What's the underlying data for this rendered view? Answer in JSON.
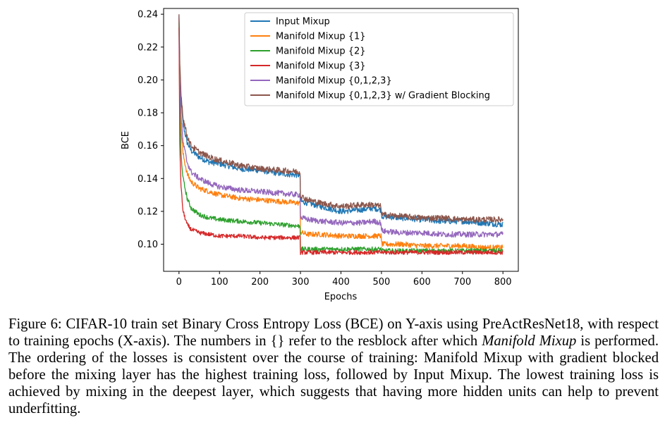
{
  "chart_data": {
    "type": "line",
    "title": "",
    "xlabel": "Epochs",
    "ylabel": "BCE",
    "xlim": [
      -38,
      838
    ],
    "ylim": [
      0.0835,
      0.2435
    ],
    "xticks": [
      0,
      100,
      200,
      300,
      400,
      500,
      600,
      700,
      800
    ],
    "xtick_labels": [
      "0",
      "100",
      "200",
      "300",
      "400",
      "500",
      "600",
      "700",
      "800"
    ],
    "yticks": [
      0.1,
      0.12,
      0.14,
      0.16,
      0.18,
      0.2,
      0.22,
      0.24
    ],
    "ytick_labels": [
      "0.10",
      "0.12",
      "0.14",
      "0.16",
      "0.18",
      "0.20",
      "0.22",
      "0.24"
    ],
    "grid": false,
    "legend_position": "top-right",
    "x": [
      0,
      2,
      5,
      10,
      20,
      30,
      50,
      75,
      100,
      150,
      200,
      250,
      299,
      300,
      302,
      320,
      350,
      400,
      450,
      480,
      499,
      500,
      502,
      550,
      600,
      650,
      700,
      750,
      800
    ],
    "series": [
      {
        "name": "Input Mixup",
        "color": "#1f77b4",
        "noise": 0.0018,
        "values": [
          0.239,
          0.205,
          0.188,
          0.173,
          0.162,
          0.157,
          0.153,
          0.15,
          0.149,
          0.146,
          0.145,
          0.143,
          0.142,
          0.127,
          0.126,
          0.125,
          0.123,
          0.12,
          0.121,
          0.122,
          0.121,
          0.118,
          0.117,
          0.116,
          0.115,
          0.114,
          0.114,
          0.113,
          0.112
        ]
      },
      {
        "name": "Manifold Mixup {1}",
        "color": "#ff7f0e",
        "noise": 0.0016,
        "values": [
          0.237,
          0.19,
          0.17,
          0.155,
          0.143,
          0.138,
          0.134,
          0.132,
          0.13,
          0.128,
          0.127,
          0.126,
          0.125,
          0.108,
          0.107,
          0.106,
          0.106,
          0.105,
          0.105,
          0.105,
          0.105,
          0.101,
          0.1,
          0.1,
          0.099,
          0.099,
          0.099,
          0.098,
          0.098
        ]
      },
      {
        "name": "Manifold Mixup {2}",
        "color": "#2ca02c",
        "noise": 0.0014,
        "values": [
          0.235,
          0.178,
          0.155,
          0.14,
          0.128,
          0.122,
          0.118,
          0.116,
          0.115,
          0.114,
          0.113,
          0.112,
          0.111,
          0.098,
          0.097,
          0.097,
          0.097,
          0.097,
          0.097,
          0.097,
          0.097,
          0.096,
          0.096,
          0.096,
          0.096,
          0.096,
          0.096,
          0.096,
          0.096
        ]
      },
      {
        "name": "Manifold Mixup {3}",
        "color": "#d62728",
        "noise": 0.0013,
        "values": [
          0.232,
          0.16,
          0.135,
          0.12,
          0.112,
          0.109,
          0.107,
          0.106,
          0.105,
          0.105,
          0.104,
          0.104,
          0.104,
          0.095,
          0.095,
          0.095,
          0.095,
          0.095,
          0.095,
          0.095,
          0.095,
          0.095,
          0.095,
          0.095,
          0.095,
          0.095,
          0.095,
          0.095,
          0.095
        ]
      },
      {
        "name": "Manifold Mixup {0,1,2,3}",
        "color": "#9467bd",
        "noise": 0.0017,
        "values": [
          0.238,
          0.198,
          0.178,
          0.162,
          0.15,
          0.144,
          0.14,
          0.137,
          0.135,
          0.133,
          0.132,
          0.131,
          0.13,
          0.117,
          0.116,
          0.115,
          0.114,
          0.113,
          0.113,
          0.114,
          0.113,
          0.109,
          0.108,
          0.107,
          0.107,
          0.106,
          0.106,
          0.106,
          0.106
        ]
      },
      {
        "name": "Manifold Mixup {0,1,2,3} w/ Gradient Blocking",
        "color": "#8c564b",
        "noise": 0.0018,
        "values": [
          0.24,
          0.21,
          0.192,
          0.177,
          0.166,
          0.16,
          0.156,
          0.153,
          0.151,
          0.148,
          0.146,
          0.145,
          0.144,
          0.13,
          0.129,
          0.127,
          0.125,
          0.123,
          0.124,
          0.124,
          0.123,
          0.119,
          0.118,
          0.117,
          0.116,
          0.116,
          0.115,
          0.115,
          0.115
        ]
      }
    ]
  },
  "caption": {
    "part1": "Figure 6: CIFAR-10 train set Binary Cross Entropy Loss (BCE) on Y-axis using PreActResNet18, with respect to training epochs (X-axis). The numbers in {} refer to the resblock after which ",
    "emph": "Manifold Mixup",
    "part2": " is performed. The ordering of the losses is consistent over the course of training: Manifold Mixup with gradient blocked before the mixing layer has the highest training loss, followed by Input Mixup. The lowest training loss is achieved by mixing in the deepest layer, which suggests that having more hidden units can help to prevent underfitting."
  }
}
